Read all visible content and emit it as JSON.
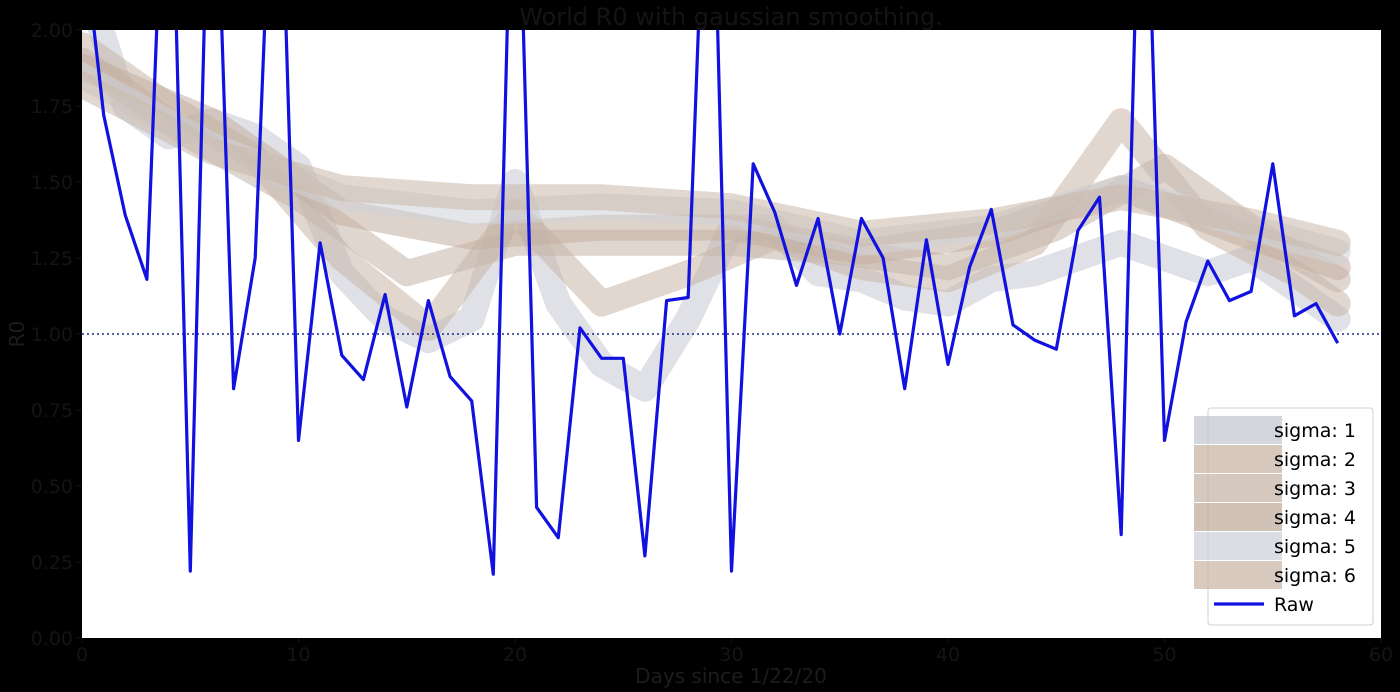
{
  "chart_data": {
    "type": "line",
    "title": "World R0 with gaussian smoothing.",
    "xlabel": "Days since 1/22/20",
    "ylabel": "R0",
    "xlim": [
      0,
      60
    ],
    "ylim": [
      0,
      2.0
    ],
    "x_ticks": [
      "0",
      "10",
      "20",
      "30",
      "40",
      "50",
      "60"
    ],
    "y_ticks": [
      "0.00",
      "0.25",
      "0.50",
      "0.75",
      "1.00",
      "1.25",
      "1.50",
      "1.75",
      "2.00"
    ],
    "reference_line": {
      "y": 1.0,
      "style": "dotted",
      "color": "#1e2a8a"
    },
    "legend": {
      "placement": "lower-right"
    },
    "series": [
      {
        "name": "Raw",
        "color": "#1111e0",
        "style": "line",
        "x": [
          0,
          1,
          2,
          3,
          4,
          5,
          6,
          7,
          8,
          9,
          10,
          11,
          12,
          13,
          14,
          15,
          16,
          17,
          18,
          19,
          20,
          21,
          22,
          23,
          24,
          25,
          26,
          27,
          28,
          29,
          30,
          31,
          32,
          33,
          34,
          35,
          36,
          37,
          38,
          39,
          40,
          41,
          42,
          43,
          44,
          45,
          46,
          47,
          48,
          49,
          50,
          51,
          52,
          53,
          54,
          55,
          56,
          57,
          58
        ],
        "values": [
          2.35,
          1.72,
          1.39,
          1.18,
          3.0,
          0.22,
          3.0,
          0.82,
          1.25,
          3.0,
          0.65,
          1.3,
          0.93,
          0.85,
          1.13,
          0.76,
          1.11,
          0.86,
          0.78,
          0.21,
          3.0,
          0.43,
          0.33,
          1.02,
          0.92,
          0.92,
          0.27,
          1.11,
          1.12,
          3.0,
          0.22,
          1.56,
          1.4,
          1.16,
          1.38,
          1.0,
          1.38,
          1.25,
          0.82,
          1.31,
          0.9,
          1.22,
          1.41,
          1.03,
          0.98,
          0.95,
          1.34,
          1.45,
          0.34,
          3.0,
          0.65,
          1.04,
          1.24,
          1.11,
          1.14,
          1.56,
          1.06,
          1.1,
          0.97
        ]
      },
      {
        "name": "sigma: 1",
        "color": "#c6c8d3",
        "style": "band",
        "x": [
          0,
          2,
          4,
          6,
          8,
          10,
          12,
          14,
          16,
          18,
          20,
          22,
          24,
          26,
          28,
          30,
          32,
          34,
          36,
          38,
          40,
          42,
          44,
          46,
          48,
          50,
          52,
          54,
          56,
          58
        ],
        "values": [
          2.2,
          1.75,
          1.65,
          1.7,
          1.65,
          1.55,
          1.2,
          1.05,
          0.98,
          1.05,
          1.5,
          1.1,
          0.9,
          0.82,
          1.05,
          1.35,
          1.35,
          1.2,
          1.18,
          1.12,
          1.1,
          1.18,
          1.2,
          1.25,
          1.3,
          1.25,
          1.2,
          1.25,
          1.15,
          1.05
        ]
      },
      {
        "name": "sigma: 2",
        "color": "#c9b6a8",
        "style": "band",
        "x": [
          0,
          4,
          8,
          12,
          16,
          20,
          24,
          28,
          32,
          36,
          40,
          44,
          48,
          52,
          56,
          58
        ],
        "values": [
          1.95,
          1.75,
          1.58,
          1.25,
          1.02,
          1.4,
          1.1,
          1.2,
          1.32,
          1.22,
          1.18,
          1.3,
          1.7,
          1.35,
          1.2,
          1.1
        ]
      },
      {
        "name": "sigma: 3",
        "color": "#c5b5aa",
        "style": "band",
        "x": [
          0,
          5,
          10,
          15,
          20,
          25,
          30,
          35,
          40,
          45,
          50,
          55,
          58
        ],
        "values": [
          1.9,
          1.65,
          1.45,
          1.2,
          1.3,
          1.3,
          1.3,
          1.27,
          1.22,
          1.35,
          1.55,
          1.3,
          1.18
        ]
      },
      {
        "name": "sigma: 4",
        "color": "#c2ae9f",
        "style": "band",
        "x": [
          0,
          6,
          12,
          18,
          24,
          30,
          36,
          42,
          48,
          54,
          58
        ],
        "values": [
          1.88,
          1.7,
          1.4,
          1.32,
          1.35,
          1.35,
          1.27,
          1.33,
          1.48,
          1.32,
          1.22
        ]
      },
      {
        "name": "sigma: 5",
        "color": "#cfd1d9",
        "style": "band",
        "x": [
          0,
          6,
          12,
          18,
          24,
          30,
          36,
          42,
          48,
          54,
          58
        ],
        "values": [
          1.85,
          1.62,
          1.45,
          1.4,
          1.42,
          1.4,
          1.3,
          1.35,
          1.48,
          1.35,
          1.27
        ]
      },
      {
        "name": "sigma: 6",
        "color": "#cbb8aa",
        "style": "band",
        "x": [
          0,
          6,
          12,
          18,
          24,
          30,
          36,
          42,
          48,
          54,
          58
        ],
        "values": [
          1.82,
          1.6,
          1.48,
          1.45,
          1.45,
          1.42,
          1.33,
          1.37,
          1.45,
          1.37,
          1.3
        ]
      }
    ]
  }
}
